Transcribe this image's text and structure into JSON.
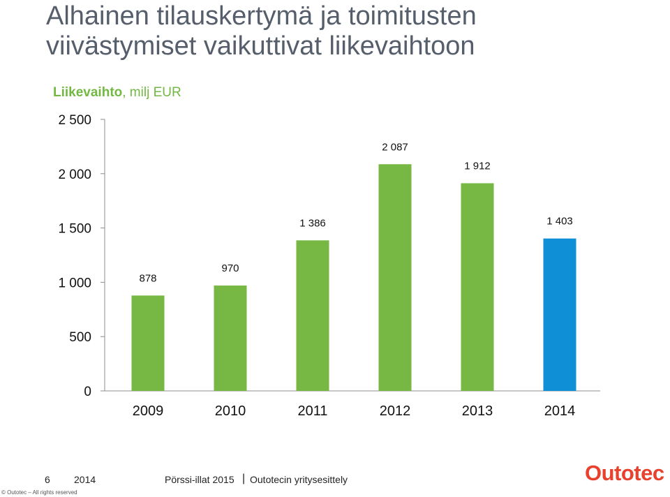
{
  "page": {
    "title_line1": "Alhainen tilauskertymä ja toimitusten",
    "title_line2": "viivästymiset vaikuttivat liikevaihtoon",
    "subtitle_bold": "Liikevaihto",
    "subtitle_rest": ", milj EUR"
  },
  "chart_data": {
    "type": "bar",
    "title": "",
    "xlabel": "",
    "ylabel": "",
    "categories": [
      "2009",
      "2010",
      "2011",
      "2012",
      "2013",
      "2014"
    ],
    "values": [
      878,
      970,
      1386,
      2087,
      1912,
      1403
    ],
    "value_labels": [
      "878",
      "970",
      "1 386",
      "2 087",
      "1 912",
      "1 403"
    ],
    "bar_colors": [
      "#76b843",
      "#76b843",
      "#76b843",
      "#76b843",
      "#76b843",
      "#0f8fd6"
    ],
    "yticks": [
      0,
      500,
      1000,
      1500,
      2000,
      2500
    ],
    "ytick_labels": [
      "0",
      "500",
      "1 000",
      "1 500",
      "2 000",
      "2 500"
    ],
    "ylim": [
      0,
      2500
    ],
    "grid": false,
    "legend": "none"
  },
  "footer": {
    "page_number": "6",
    "year": "2014",
    "event": "Pörssi-illat 2015",
    "separator": "|",
    "topic": "Outotecin yritysesittely",
    "copyright": "© Outotec – All rights reserved",
    "logo_text": "Outotec"
  }
}
